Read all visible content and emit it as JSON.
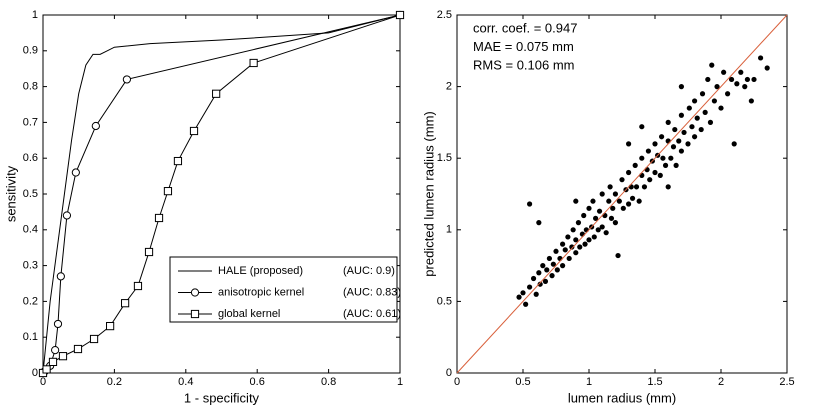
{
  "chart_data": [
    {
      "type": "line",
      "xlabel": "1 - specificity",
      "ylabel": "sensitivity",
      "xlim": [
        0,
        1
      ],
      "ylim": [
        0,
        1
      ],
      "xticks": [
        0,
        0.2,
        0.4,
        0.6,
        0.8,
        1
      ],
      "yticks": [
        0,
        0.1,
        0.2,
        0.3,
        0.4,
        0.5,
        0.6,
        0.7,
        0.8,
        0.9,
        1
      ],
      "legend": "lower right",
      "series": [
        {
          "name": "HALE (proposed)",
          "legend_note": "(AUC: 0.9)",
          "color": "#000000",
          "marker": "none",
          "x": [
            0,
            0.01,
            0.02,
            0.04,
            0.06,
            0.08,
            0.1,
            0.12,
            0.14,
            0.16,
            0.18,
            0.2,
            0.3,
            0.5,
            0.8,
            1
          ],
          "values": [
            0,
            0.1,
            0.2,
            0.35,
            0.5,
            0.65,
            0.78,
            0.86,
            0.89,
            0.89,
            0.9,
            0.91,
            0.92,
            0.93,
            0.95,
            1
          ]
        },
        {
          "name": "anisotropic kernel",
          "legend_note": "(AUC: 0.83)",
          "color": "#000000",
          "marker": "circle",
          "x": [
            0,
            0.005,
            0.01,
            0.02,
            0.034,
            0.042,
            0.05,
            0.067,
            0.092,
            0.148,
            0.235,
            1
          ],
          "values": [
            0,
            0.005,
            0.01,
            0.02,
            0.064,
            0.137,
            0.27,
            0.44,
            0.56,
            0.69,
            0.82,
            1
          ]
        },
        {
          "name": "global kernel",
          "legend_note": "(AUC: 0.61)",
          "color": "#000000",
          "marker": "square",
          "x": [
            0,
            0.01,
            0.028,
            0.056,
            0.098,
            0.143,
            0.188,
            0.23,
            0.266,
            0.297,
            0.325,
            0.35,
            0.378,
            0.423,
            0.485,
            0.59,
            1
          ],
          "values": [
            0,
            0.01,
            0.031,
            0.047,
            0.067,
            0.095,
            0.131,
            0.195,
            0.243,
            0.338,
            0.433,
            0.508,
            0.592,
            0.676,
            0.78,
            0.866,
            1
          ]
        }
      ]
    },
    {
      "type": "scatter",
      "xlabel": "lumen radius (mm)",
      "ylabel": "predicted lumen radius (mm)",
      "xlim": [
        0,
        2.5
      ],
      "ylim": [
        0,
        2.5
      ],
      "xticks": [
        0,
        0.5,
        1,
        1.5,
        2,
        2.5
      ],
      "yticks": [
        0,
        0.5,
        1,
        1.5,
        2,
        2.5
      ],
      "annotations": [
        "corr. coef. = 0.947",
        "MAE = 0.075 mm",
        "RMS = 0.106 mm"
      ],
      "color": "#000000",
      "reference_line": {
        "x": [
          0,
          2.5
        ],
        "y": [
          0,
          2.5
        ],
        "color": "#d9603b"
      },
      "x": [
        0.47,
        0.5,
        0.52,
        0.55,
        0.55,
        0.58,
        0.6,
        0.62,
        0.63,
        0.65,
        0.67,
        0.68,
        0.7,
        0.72,
        0.73,
        0.75,
        0.76,
        0.78,
        0.8,
        0.8,
        0.82,
        0.84,
        0.85,
        0.87,
        0.88,
        0.9,
        0.9,
        0.92,
        0.93,
        0.95,
        0.96,
        0.97,
        0.98,
        1.0,
        1.0,
        1.02,
        1.03,
        1.04,
        1.05,
        1.07,
        1.08,
        1.1,
        1.1,
        1.12,
        1.13,
        1.15,
        1.16,
        1.17,
        1.18,
        1.2,
        1.2,
        1.22,
        1.23,
        1.25,
        1.26,
        1.28,
        1.3,
        1.3,
        1.32,
        1.33,
        1.35,
        1.36,
        1.38,
        1.4,
        1.4,
        1.42,
        1.44,
        1.45,
        1.46,
        1.48,
        1.5,
        1.5,
        1.52,
        1.54,
        1.55,
        1.56,
        1.58,
        1.6,
        1.6,
        1.62,
        1.64,
        1.65,
        1.66,
        1.68,
        1.7,
        1.7,
        1.72,
        1.75,
        1.76,
        1.78,
        1.8,
        1.8,
        1.82,
        1.85,
        1.86,
        1.88,
        1.9,
        1.92,
        1.95,
        1.97,
        2.0,
        2.02,
        2.05,
        2.08,
        2.1,
        2.12,
        2.15,
        2.18,
        2.2,
        2.23,
        2.25,
        2.3,
        2.35,
        1.93,
        1.4,
        1.3,
        0.62,
        1.6,
        0.9,
        1.7
      ],
      "y": [
        0.53,
        0.56,
        0.48,
        0.6,
        1.18,
        0.66,
        0.55,
        0.7,
        0.62,
        0.75,
        0.64,
        0.72,
        0.8,
        0.68,
        0.76,
        0.85,
        0.72,
        0.8,
        0.9,
        0.75,
        0.86,
        0.95,
        0.8,
        0.88,
        1.0,
        0.84,
        0.93,
        1.05,
        0.88,
        0.97,
        1.1,
        0.9,
        1.0,
        1.15,
        0.93,
        1.02,
        1.2,
        0.95,
        1.08,
        1.0,
        1.13,
        1.25,
        1.02,
        1.1,
        0.98,
        1.2,
        1.3,
        1.08,
        1.15,
        1.25,
        1.05,
        0.82,
        1.2,
        1.35,
        1.15,
        1.28,
        1.4,
        1.18,
        1.3,
        1.22,
        1.45,
        1.3,
        1.2,
        1.38,
        1.5,
        1.3,
        1.42,
        1.55,
        1.35,
        1.48,
        1.6,
        1.4,
        1.52,
        1.38,
        1.65,
        1.5,
        1.45,
        1.62,
        1.75,
        1.5,
        1.58,
        1.7,
        1.45,
        1.62,
        1.8,
        1.55,
        1.68,
        1.6,
        1.85,
        1.72,
        1.65,
        1.9,
        1.78,
        1.7,
        1.95,
        1.82,
        2.05,
        1.75,
        1.9,
        2.0,
        1.85,
        2.1,
        1.95,
        2.05,
        1.6,
        2.02,
        2.1,
        2.0,
        2.05,
        1.9,
        2.05,
        2.2,
        2.13,
        2.15,
        1.72,
        1.6,
        1.05,
        1.3,
        1.2,
        2.0
      ]
    }
  ]
}
